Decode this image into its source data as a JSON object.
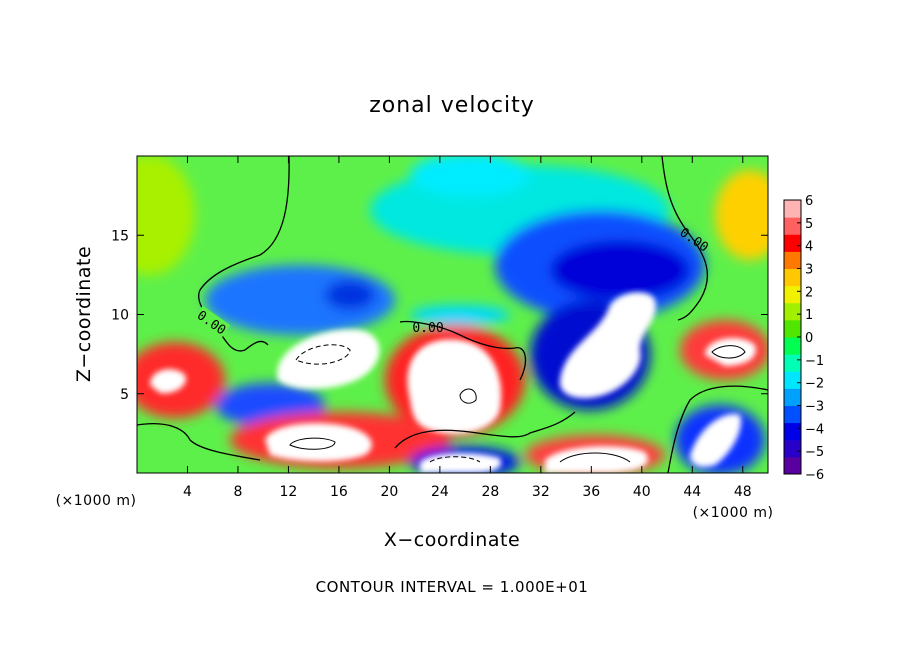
{
  "chart_data": {
    "type": "heatmap",
    "title": "zonal velocity",
    "xlabel": "X−coordinate",
    "ylabel": "Z−coordinate",
    "x_unit_label": "(×1000 m)",
    "y_unit_label": "(×1000 m)",
    "xlim": [
      0,
      50
    ],
    "ylim": [
      0,
      20
    ],
    "x_ticks": [
      4,
      8,
      12,
      16,
      20,
      24,
      28,
      32,
      36,
      40,
      44,
      48
    ],
    "x_tick_labels": [
      "4",
      "8",
      "12",
      "16",
      "20",
      "24",
      "28",
      "32",
      "36",
      "40",
      "44",
      "48"
    ],
    "y_ticks": [
      5,
      10,
      15
    ],
    "y_tick_labels": [
      "5",
      "10",
      "15"
    ],
    "note": "CONTOUR INTERVAL = 1.000E+01",
    "contour_label": "0.00",
    "colorbar": {
      "ticks": [
        "6",
        "5",
        "4",
        "3",
        "2",
        "1",
        "0",
        "−1",
        "−2",
        "−3",
        "−4",
        "−5",
        "−6"
      ],
      "range": [
        -6,
        6
      ],
      "colors": [
        "#5a00a0",
        "#2800c8",
        "#0000e6",
        "#0050ff",
        "#00a0ff",
        "#00e6ff",
        "#00ffb4",
        "#00ff50",
        "#50e600",
        "#a0f000",
        "#f0f000",
        "#ffc800",
        "#ff7800",
        "#ff0000",
        "#ff6060",
        "#ffb4b4"
      ]
    },
    "grid": false,
    "legend": "right colorbar"
  }
}
